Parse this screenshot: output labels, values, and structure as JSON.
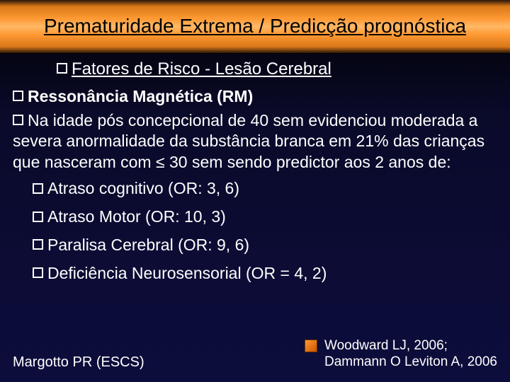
{
  "title": "Prematuridade Extrema / Predicção prognóstica",
  "subtitle": "Fatores de Risco -  Lesão Cerebral",
  "heading": "Ressonância Magnética (RM)",
  "paragraph": "Na idade pós concepcional de 40 sem evidenciou moderada a severa anormalidade da substância branca em 21% das crianças que nasceram com ≤ 30 sem sendo predictor aos 2 anos de:",
  "items": [
    "Atraso cognitivo (OR: 3, 6)",
    "Atraso Motor (OR: 10, 3)",
    "Paralisa Cerebral (OR: 9, 6)",
    "Deficiência Neurosensorial (OR = 4, 2)"
  ],
  "footer_left": "Margotto PR (ESCS)",
  "footer_right_line1": "Woodward LJ, 2006;",
  "footer_right_line2": "Dammann O Leviton A, 2006",
  "colors": {
    "background_top": "#000000",
    "background_bottom": "#0d0d3d",
    "title_gradient_mid": "#ff9933",
    "text": "#ffffff",
    "title_text": "#000000"
  },
  "typography": {
    "title_fontsize": 28,
    "subtitle_fontsize": 24,
    "body_fontsize": 23,
    "footer_fontsize": 20
  }
}
